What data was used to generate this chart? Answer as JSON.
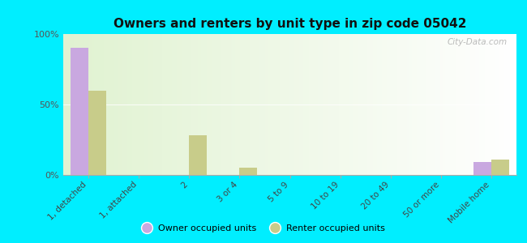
{
  "title": "Owners and renters by unit type in zip code 05042",
  "categories": [
    "1, detached",
    "1, attached",
    "2",
    "3 or 4",
    "5 to 9",
    "10 to 19",
    "20 to 49",
    "50 or more",
    "Mobile home"
  ],
  "owner_values": [
    90,
    0,
    0,
    0,
    0,
    0,
    0,
    0,
    9
  ],
  "renter_values": [
    60,
    0,
    28,
    5,
    0,
    0,
    0,
    0,
    11
  ],
  "owner_color": "#c9a8e0",
  "renter_color": "#c8cc8a",
  "background_color": "#00eeff",
  "plot_bg_color": "#eef5e0",
  "ylim": [
    0,
    100
  ],
  "yticks": [
    0,
    50,
    100
  ],
  "ytick_labels": [
    "0%",
    "50%",
    "100%"
  ],
  "legend_owner": "Owner occupied units",
  "legend_renter": "Renter occupied units",
  "bar_width": 0.35,
  "watermark": "City-Data.com"
}
